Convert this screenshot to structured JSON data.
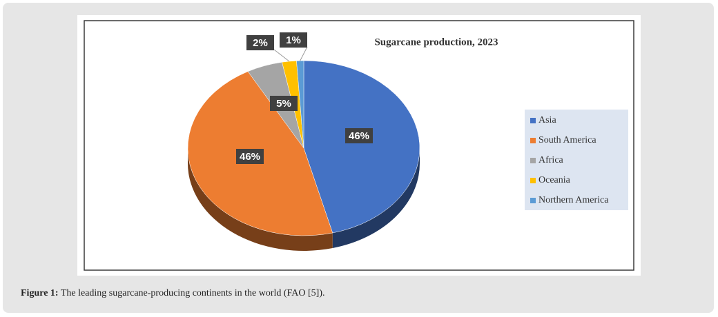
{
  "chart_data": {
    "type": "pie",
    "title": "Sugarcane production, 2023",
    "categories": [
      "Asia",
      "South America",
      "Africa",
      "Oceania",
      "Northern America"
    ],
    "values": [
      46,
      46,
      5,
      2,
      1
    ],
    "value_labels": [
      "46%",
      "46%",
      "5%",
      "2%",
      "1%"
    ],
    "colors": [
      "#4472c4",
      "#ed7d31",
      "#a5a5a5",
      "#ffc000",
      "#5b9bd5"
    ],
    "legend": "right"
  },
  "caption": {
    "label": "Figure 1:",
    "text": "The leading sugarcane-producing continents in the world (FAO [5])."
  }
}
